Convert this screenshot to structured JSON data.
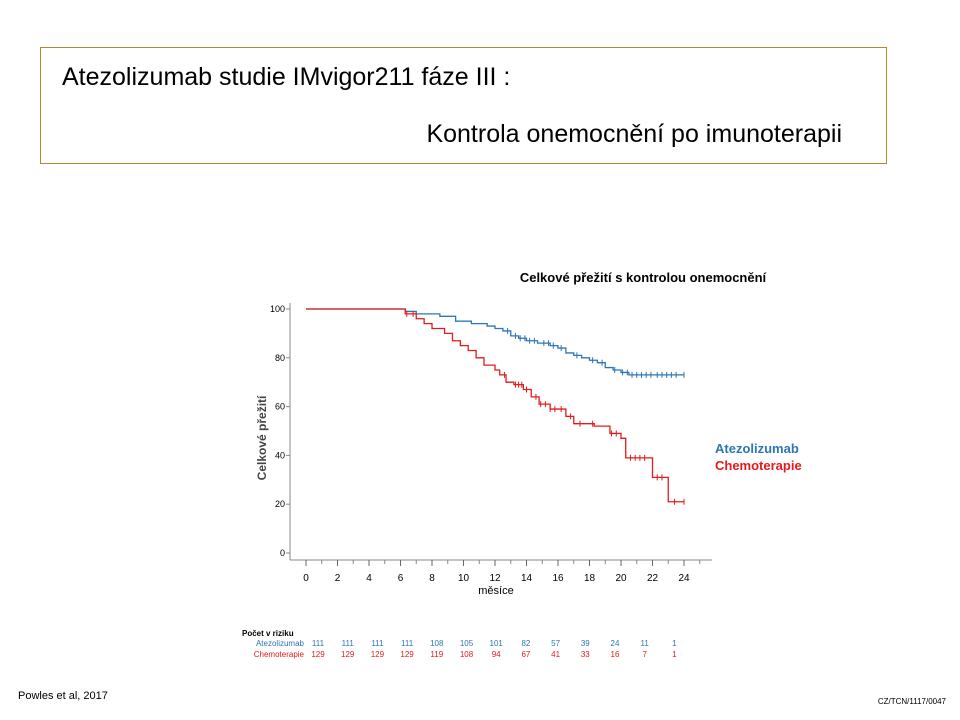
{
  "title": {
    "line1": "Atezolizumab studie IMvigor211 fáze III :",
    "line2": "Kontrola onemocnění po imunoterapii"
  },
  "colors": {
    "atezolizumab": "#2e75b6",
    "chemo": "#e41a1c",
    "title_border": "#b08a2e"
  },
  "chart_data": {
    "type": "line",
    "title": "Celkové přežití s kontrolou onemocnění",
    "xlabel": "měsíce",
    "ylabel": "Celkové přežití",
    "xlim": [
      -1,
      26
    ],
    "ylim": [
      0,
      100
    ],
    "x_ticks": [
      0,
      2,
      4,
      6,
      8,
      10,
      12,
      14,
      16,
      18,
      20,
      22,
      24
    ],
    "y_ticks": [
      0,
      20,
      40,
      60,
      80,
      100
    ],
    "step": true,
    "legend_position": "right",
    "series": [
      {
        "name": "Atezolizumab",
        "color": "#2e75b6",
        "points": [
          [
            0,
            100
          ],
          [
            6,
            100
          ],
          [
            6.3,
            99
          ],
          [
            7,
            98
          ],
          [
            8.5,
            97
          ],
          [
            9.5,
            95
          ],
          [
            10.5,
            94
          ],
          [
            11.5,
            93
          ],
          [
            12,
            92
          ],
          [
            12.5,
            91
          ],
          [
            13,
            89
          ],
          [
            13.5,
            88
          ],
          [
            14,
            87
          ],
          [
            14.7,
            86
          ],
          [
            15.5,
            85
          ],
          [
            16,
            84
          ],
          [
            16.5,
            82
          ],
          [
            17,
            81
          ],
          [
            17.5,
            80
          ],
          [
            18,
            79
          ],
          [
            18.5,
            78
          ],
          [
            19,
            76
          ],
          [
            19.5,
            75
          ],
          [
            20,
            74
          ],
          [
            20.5,
            73
          ],
          [
            24,
            73
          ]
        ],
        "censor_x": [
          12.8,
          13.3,
          13.6,
          13.9,
          14.2,
          14.5,
          15.1,
          15.4,
          15.7,
          16.2,
          17.2,
          18.2,
          18.8,
          19.6,
          20.1,
          20.4,
          20.7,
          21,
          21.3,
          21.6,
          21.9,
          22.3,
          22.6,
          22.9,
          23.2,
          23.5,
          24
        ]
      },
      {
        "name": "Chemoterapie",
        "color": "#e41a1c",
        "points": [
          [
            0,
            100
          ],
          [
            6,
            100
          ],
          [
            6.3,
            98
          ],
          [
            7,
            96
          ],
          [
            7.5,
            94
          ],
          [
            8,
            92
          ],
          [
            8.8,
            90
          ],
          [
            9.3,
            87
          ],
          [
            9.8,
            85
          ],
          [
            10.3,
            83
          ],
          [
            10.8,
            80
          ],
          [
            11.3,
            77
          ],
          [
            12,
            75
          ],
          [
            12.3,
            73
          ],
          [
            12.7,
            70
          ],
          [
            13.2,
            69
          ],
          [
            13.8,
            67
          ],
          [
            14.3,
            64
          ],
          [
            14.8,
            61
          ],
          [
            15.5,
            59
          ],
          [
            16.5,
            56
          ],
          [
            17,
            53
          ],
          [
            18,
            53
          ],
          [
            18.3,
            52
          ],
          [
            19.3,
            49
          ],
          [
            20,
            47
          ],
          [
            20.3,
            39
          ],
          [
            21.8,
            39
          ],
          [
            22,
            31
          ],
          [
            22.8,
            31
          ],
          [
            23,
            21
          ],
          [
            24,
            21
          ]
        ],
        "censor_x": [
          6.4,
          6.8,
          12.6,
          13.3,
          13.5,
          13.7,
          14,
          14.6,
          14.9,
          15.2,
          15.5,
          15.8,
          16.2,
          16.8,
          17.4,
          18.2,
          19.4,
          19.7,
          20.6,
          20.9,
          21.2,
          21.5,
          22.3,
          22.6,
          23.4,
          24
        ]
      }
    ],
    "risk_table": {
      "header": "Počet v riziku",
      "rows": [
        {
          "label": "Atezolizumab",
          "color": "#2e75b6",
          "values": [
            "111",
            "111",
            "111",
            "111",
            "108",
            "105",
            "101",
            "82",
            "57",
            "39",
            "24",
            "11",
            "1"
          ]
        },
        {
          "label": "Chemoterapie",
          "color": "#e41a1c",
          "values": [
            "129",
            "129",
            "129",
            "129",
            "119",
            "108",
            "94",
            "67",
            "41",
            "33",
            "16",
            "7",
            "1"
          ]
        }
      ]
    }
  },
  "footer": {
    "reference": "Powles et al, 2017",
    "code": "CZ/TCN/1117/0047"
  }
}
